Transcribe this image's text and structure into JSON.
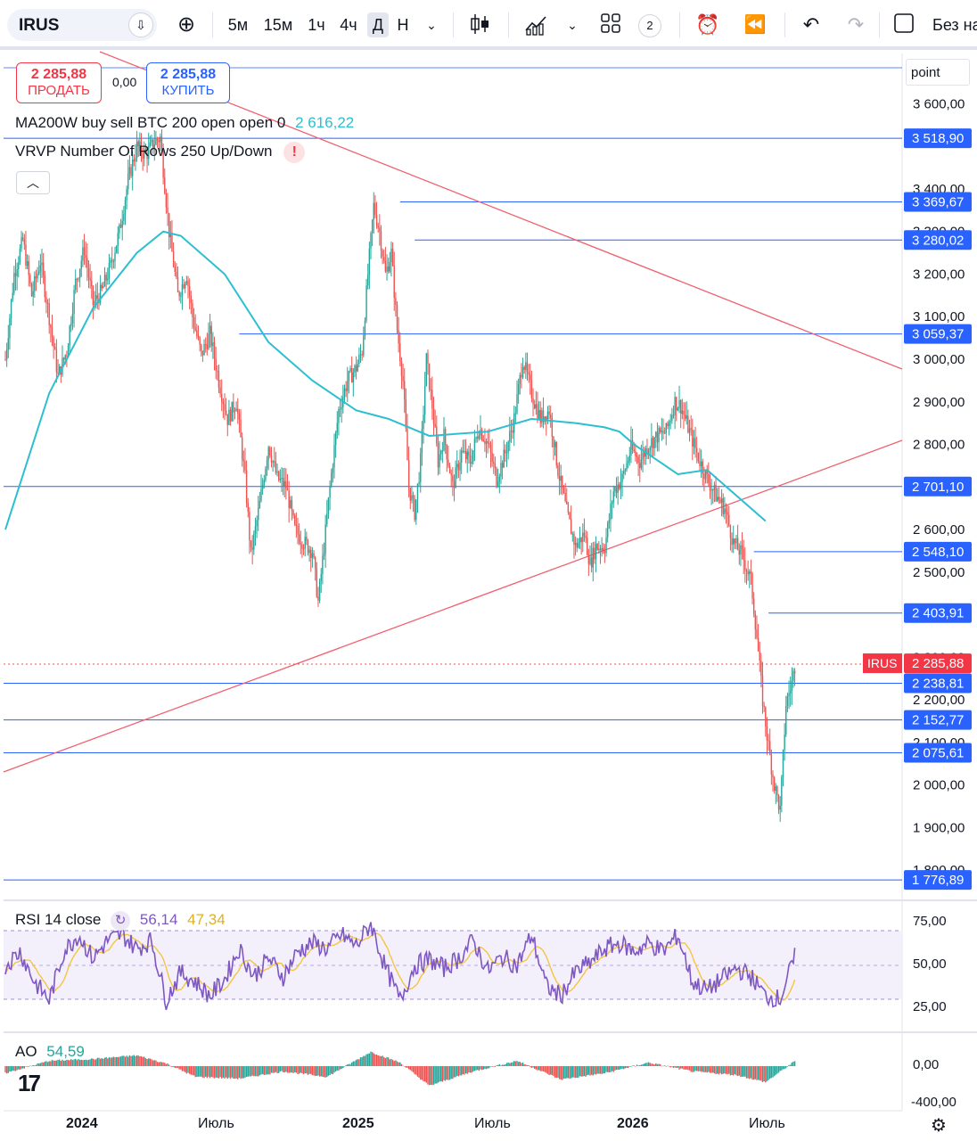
{
  "toolbar": {
    "symbol": "IRUS",
    "timeframes": [
      "5м",
      "15м",
      "1ч",
      "4ч",
      "Д",
      "Н"
    ],
    "active_timeframe": "Д",
    "layout_count": "2",
    "save_label": "Без на"
  },
  "trade": {
    "sell_price": "2 285,88",
    "sell_label": "ПРОДАТЬ",
    "spread": "0,00",
    "buy_price": "2 285,88",
    "buy_label": "КУПИТЬ"
  },
  "legends": {
    "ma_text": "MA200W buy sell BTC 200 open open 0",
    "ma_value": "2 616,22",
    "vrvp_text": "VRVP Number Of Rows 250 Up/Down"
  },
  "price_axis": {
    "unit": "point",
    "ticks": [
      "3 600,00",
      "3 400,00",
      "3 300,00",
      "3 200,00",
      "3 100,00",
      "3 000,00",
      "2 900,00",
      "2 800,00",
      "2 600,00",
      "2 500,00",
      "2 300,00",
      "2 200,00",
      "2 100,00",
      "2 000,00",
      "1 900,00",
      "1 800,00"
    ],
    "levels": [
      "3 518,90",
      "3 369,67",
      "3 280,02",
      "3 059,37",
      "2 701,10",
      "2 548,10",
      "2 403,91",
      "2 238,81",
      "2 152,77",
      "2 075,61",
      "1 776,89"
    ],
    "current_symbol": "IRUS",
    "current_price": "2 285,88"
  },
  "rsi": {
    "label": "RSI 14 close",
    "value": "56,14",
    "ma_value": "47,34",
    "ticks": [
      "75,00",
      "50,00",
      "25,00"
    ]
  },
  "ao": {
    "label": "AO",
    "value": "54,59",
    "ticks": [
      "0,00",
      "-400,00"
    ]
  },
  "time_axis": [
    "2024",
    "Июль",
    "2025",
    "Июль",
    "2026",
    "Июль"
  ],
  "colors": {
    "up": "#26a69a",
    "down": "#ef5350",
    "ma": "#2cbfd0",
    "level": "#2962ff",
    "trend": "#f06270",
    "rsi": "#7e57c2",
    "rsi_ma": "#f4c542"
  },
  "chart_data": {
    "type": "candlestick",
    "ylim": [
      1770,
      3700
    ],
    "path": [
      [
        0,
        3000
      ],
      [
        6,
        3200
      ],
      [
        12,
        3280
      ],
      [
        18,
        3150
      ],
      [
        24,
        3230
      ],
      [
        30,
        3100
      ],
      [
        36,
        2960
      ],
      [
        42,
        3020
      ],
      [
        48,
        3180
      ],
      [
        54,
        3260
      ],
      [
        60,
        3130
      ],
      [
        66,
        3160
      ],
      [
        72,
        3220
      ],
      [
        78,
        3300
      ],
      [
        84,
        3420
      ],
      [
        90,
        3500
      ],
      [
        96,
        3480
      ],
      [
        102,
        3510
      ],
      [
        106,
        3520
      ],
      [
        112,
        3300
      ],
      [
        118,
        3150
      ],
      [
        124,
        3200
      ],
      [
        128,
        3100
      ],
      [
        134,
        3010
      ],
      [
        140,
        3060
      ],
      [
        146,
        2950
      ],
      [
        152,
        2860
      ],
      [
        158,
        2900
      ],
      [
        164,
        2720
      ],
      [
        168,
        2540
      ],
      [
        174,
        2660
      ],
      [
        180,
        2800
      ],
      [
        186,
        2720
      ],
      [
        192,
        2700
      ],
      [
        198,
        2600
      ],
      [
        204,
        2570
      ],
      [
        210,
        2550
      ],
      [
        214,
        2430
      ],
      [
        218,
        2560
      ],
      [
        222,
        2700
      ],
      [
        228,
        2880
      ],
      [
        234,
        2950
      ],
      [
        240,
        2980
      ],
      [
        244,
        3020
      ],
      [
        248,
        3200
      ],
      [
        252,
        3360
      ],
      [
        256,
        3300
      ],
      [
        260,
        3200
      ],
      [
        264,
        3250
      ],
      [
        268,
        3070
      ],
      [
        272,
        2950
      ],
      [
        276,
        2700
      ],
      [
        280,
        2640
      ],
      [
        284,
        2760
      ],
      [
        288,
        3000
      ],
      [
        292,
        2890
      ],
      [
        296,
        2760
      ],
      [
        300,
        2820
      ],
      [
        306,
        2700
      ],
      [
        312,
        2780
      ],
      [
        318,
        2760
      ],
      [
        324,
        2840
      ],
      [
        330,
        2800
      ],
      [
        336,
        2720
      ],
      [
        342,
        2780
      ],
      [
        348,
        2860
      ],
      [
        354,
        3000
      ],
      [
        360,
        2920
      ],
      [
        366,
        2860
      ],
      [
        372,
        2880
      ],
      [
        378,
        2740
      ],
      [
        384,
        2640
      ],
      [
        390,
        2560
      ],
      [
        396,
        2590
      ],
      [
        400,
        2520
      ],
      [
        404,
        2560
      ],
      [
        410,
        2560
      ],
      [
        416,
        2690
      ],
      [
        422,
        2720
      ],
      [
        428,
        2790
      ],
      [
        434,
        2760
      ],
      [
        440,
        2800
      ],
      [
        446,
        2820
      ],
      [
        452,
        2830
      ],
      [
        458,
        2900
      ],
      [
        462,
        2890
      ],
      [
        468,
        2830
      ],
      [
        474,
        2770
      ],
      [
        480,
        2720
      ],
      [
        486,
        2680
      ],
      [
        492,
        2650
      ],
      [
        498,
        2570
      ],
      [
        504,
        2540
      ],
      [
        510,
        2480
      ],
      [
        514,
        2350
      ],
      [
        518,
        2200
      ],
      [
        522,
        2090
      ],
      [
        526,
        2000
      ],
      [
        530,
        1940
      ],
      [
        534,
        2190
      ],
      [
        538,
        2240
      ],
      [
        540,
        2280
      ]
    ],
    "ma200w": [
      [
        0,
        2600
      ],
      [
        30,
        2920
      ],
      [
        60,
        3120
      ],
      [
        90,
        3250
      ],
      [
        108,
        3300
      ],
      [
        120,
        3290
      ],
      [
        150,
        3200
      ],
      [
        180,
        3040
      ],
      [
        210,
        2950
      ],
      [
        240,
        2880
      ],
      [
        262,
        2860
      ],
      [
        290,
        2820
      ],
      [
        330,
        2830
      ],
      [
        360,
        2860
      ],
      [
        390,
        2850
      ],
      [
        410,
        2840
      ],
      [
        420,
        2830
      ],
      [
        430,
        2800
      ],
      [
        460,
        2730
      ],
      [
        480,
        2740
      ],
      [
        500,
        2680
      ],
      [
        520,
        2620
      ]
    ],
    "rsi": [
      [
        0,
        50
      ],
      [
        10,
        60
      ],
      [
        20,
        38
      ],
      [
        30,
        25
      ],
      [
        40,
        60
      ],
      [
        50,
        72
      ],
      [
        60,
        55
      ],
      [
        70,
        68
      ],
      [
        80,
        72
      ],
      [
        90,
        62
      ],
      [
        100,
        68
      ],
      [
        110,
        25
      ],
      [
        120,
        45
      ],
      [
        130,
        38
      ],
      [
        140,
        28
      ],
      [
        150,
        40
      ],
      [
        160,
        62
      ],
      [
        170,
        42
      ],
      [
        180,
        55
      ],
      [
        190,
        42
      ],
      [
        200,
        60
      ],
      [
        210,
        66
      ],
      [
        220,
        62
      ],
      [
        230,
        72
      ],
      [
        240,
        64
      ],
      [
        250,
        80
      ],
      [
        260,
        48
      ],
      [
        270,
        25
      ],
      [
        280,
        50
      ],
      [
        290,
        54
      ],
      [
        300,
        48
      ],
      [
        310,
        55
      ],
      [
        320,
        68
      ],
      [
        330,
        46
      ],
      [
        340,
        56
      ],
      [
        350,
        50
      ],
      [
        360,
        72
      ],
      [
        370,
        35
      ],
      [
        380,
        28
      ],
      [
        390,
        45
      ],
      [
        400,
        52
      ],
      [
        410,
        62
      ],
      [
        420,
        66
      ],
      [
        430,
        60
      ],
      [
        440,
        66
      ],
      [
        450,
        60
      ],
      [
        460,
        72
      ],
      [
        470,
        38
      ],
      [
        480,
        32
      ],
      [
        490,
        40
      ],
      [
        500,
        48
      ],
      [
        510,
        42
      ],
      [
        520,
        28
      ],
      [
        530,
        26
      ],
      [
        540,
        56
      ]
    ],
    "ao": [
      [
        0,
        -80
      ],
      [
        30,
        60
      ],
      [
        60,
        80
      ],
      [
        90,
        120
      ],
      [
        110,
        30
      ],
      [
        130,
        -120
      ],
      [
        160,
        -140
      ],
      [
        190,
        -60
      ],
      [
        220,
        -120
      ],
      [
        250,
        160
      ],
      [
        270,
        40
      ],
      [
        290,
        -220
      ],
      [
        320,
        -60
      ],
      [
        350,
        60
      ],
      [
        380,
        -150
      ],
      [
        410,
        -80
      ],
      [
        440,
        40
      ],
      [
        470,
        -60
      ],
      [
        500,
        -100
      ],
      [
        520,
        -180
      ],
      [
        540,
        54
      ]
    ],
    "levels": [
      3518.9,
      3369.67,
      3280.02,
      3059.37,
      2701.1,
      2548.1,
      2403.91,
      2238.81,
      2152.77,
      2075.61,
      1776.89
    ],
    "current_price": 2285.88
  }
}
